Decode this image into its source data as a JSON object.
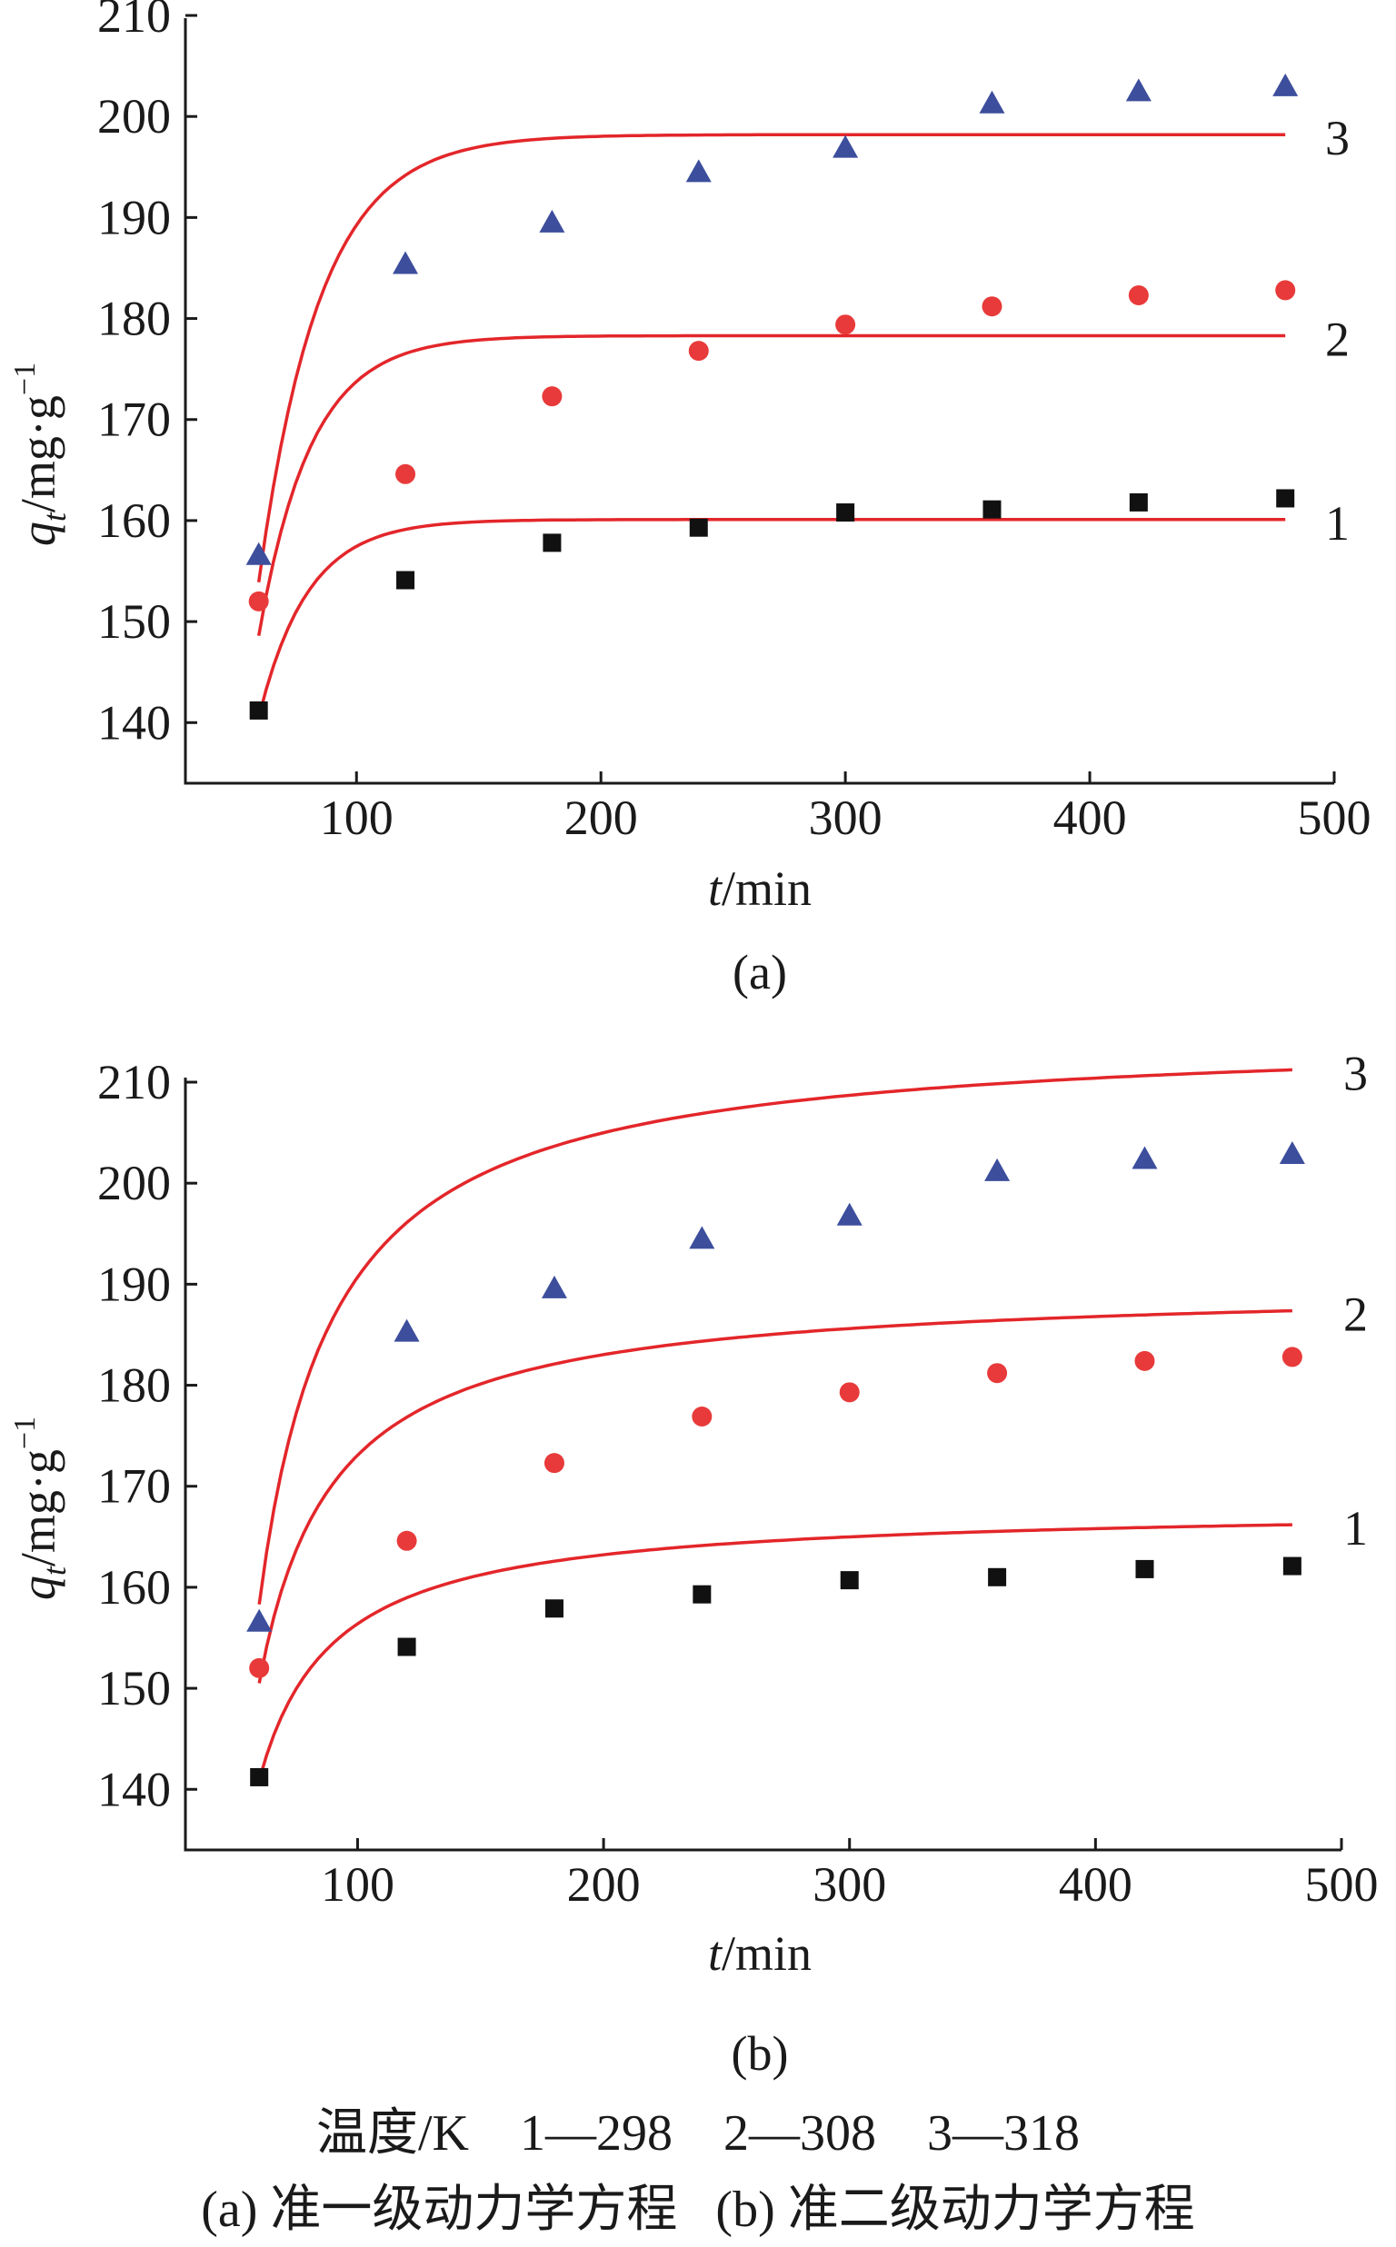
{
  "chart_data": [
    {
      "type": "scatter",
      "panel_label": "(a)",
      "xlabel": {
        "var": "t",
        "unit": "/min"
      },
      "ylabel": {
        "var": "q",
        "sub": "t",
        "unit": "/mg·g",
        "sup": "−1"
      },
      "xlim": [
        30,
        500
      ],
      "ylim": [
        134,
        210
      ],
      "xticks": [
        100,
        200,
        300,
        400,
        500
      ],
      "yticks": [
        140,
        150,
        160,
        170,
        180,
        190,
        200,
        210
      ],
      "grid": false,
      "x": [
        60,
        120,
        180,
        240,
        300,
        360,
        420,
        480
      ],
      "series": [
        {
          "label": "1",
          "marker": "square",
          "color": "#111111",
          "values": [
            141.2,
            154.1,
            157.8,
            159.3,
            160.8,
            161.1,
            161.8,
            162.2
          ],
          "fit_color": "#e3262a",
          "fit": {
            "qe": 160.1,
            "q0": 140.5,
            "k": 0.05
          }
        },
        {
          "label": "2",
          "marker": "circle",
          "color": "#e83a3a",
          "values": [
            152.0,
            164.6,
            172.3,
            176.8,
            179.4,
            181.2,
            182.3,
            182.8
          ],
          "fit_color": "#e3262a",
          "fit": {
            "qe": 178.3,
            "q0": 148.6,
            "k": 0.047
          }
        },
        {
          "label": "3",
          "marker": "triangle",
          "color": "#3c4e9c",
          "values": [
            156.6,
            185.4,
            189.5,
            194.5,
            196.9,
            201.3,
            202.5,
            203.0
          ],
          "fit_color": "#e3262a",
          "fit": {
            "qe": 198.2,
            "q0": 153.9,
            "k": 0.04
          }
        }
      ]
    },
    {
      "type": "scatter",
      "panel_label": "(b)",
      "xlabel": {
        "var": "t",
        "unit": "/min"
      },
      "ylabel": {
        "var": "q",
        "sub": "t",
        "unit": "/mg·g",
        "sup": "−1"
      },
      "xlim": [
        30,
        500
      ],
      "ylim": [
        134,
        210
      ],
      "xticks": [
        100,
        200,
        300,
        400,
        500
      ],
      "yticks": [
        140,
        150,
        160,
        170,
        180,
        190,
        200,
        210
      ],
      "grid": false,
      "x": [
        60,
        120,
        180,
        240,
        300,
        360,
        420,
        480
      ],
      "series": [
        {
          "label": "1",
          "marker": "square",
          "color": "#111111",
          "values": [
            141.2,
            154.1,
            157.9,
            159.3,
            160.7,
            161.0,
            161.8,
            162.1
          ],
          "fit_color": "#e3262a",
          "fit": {
            "qe": 168.0,
            "a": 27.1,
            "b": 30
          }
        },
        {
          "label": "2",
          "marker": "circle",
          "color": "#e83a3a",
          "values": [
            152.0,
            164.6,
            172.3,
            176.9,
            179.3,
            181.2,
            182.4,
            182.8
          ],
          "fit_color": "#e3262a",
          "fit": {
            "qe": 190.0,
            "a": 39.5,
            "b": 30
          }
        },
        {
          "label": "3",
          "marker": "triangle",
          "color": "#3c4e9c",
          "values": [
            156.6,
            185.3,
            189.6,
            194.5,
            196.8,
            201.2,
            202.4,
            202.9
          ],
          "fit_color": "#e3262a",
          "fit": {
            "qe": 215.0,
            "a": 56.7,
            "b": 30
          }
        }
      ]
    }
  ],
  "footer": {
    "legend_line": "温度/K    1—298    2—308    3—318",
    "caption_line": "(a) 准一级动力学方程   (b) 准二级动力学方程"
  }
}
